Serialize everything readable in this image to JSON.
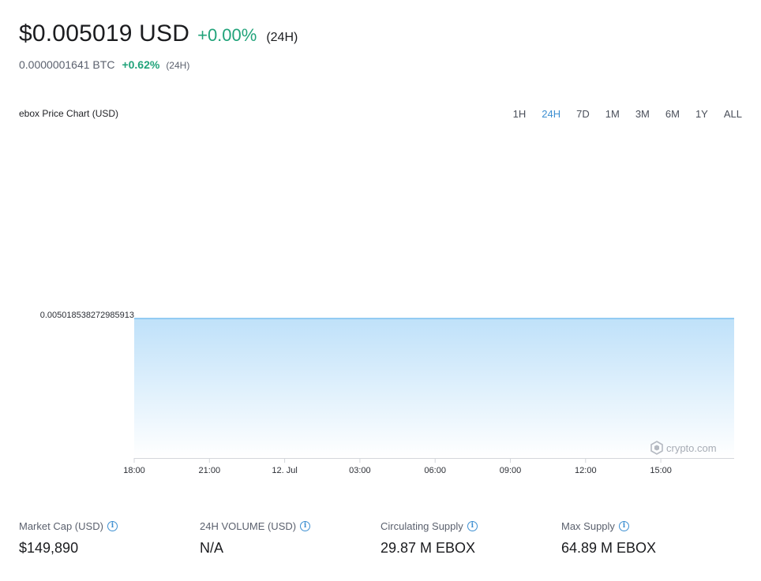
{
  "header": {
    "price_usd": "$0.005019 USD",
    "change_usd": "+0.00%",
    "period": "(24H)",
    "price_btc": "0.0000001641 BTC",
    "change_btc": "+0.62%",
    "period_btc": "(24H)"
  },
  "chart_header": {
    "title": "ebox Price Chart (USD)",
    "ranges": [
      "1H",
      "24H",
      "7D",
      "1M",
      "3M",
      "6M",
      "1Y",
      "ALL"
    ],
    "active_range": "24H"
  },
  "watermark": {
    "text": "crypto.com",
    "icon": "crypto-com-logo-icon"
  },
  "chart_data": {
    "type": "area",
    "title": "ebox Price Chart (USD)",
    "xlabel": "",
    "ylabel": "",
    "x_ticks": [
      "18:00",
      "21:00",
      "12. Jul",
      "03:00",
      "06:00",
      "09:00",
      "12:00",
      "15:00"
    ],
    "y_ticks": [
      "0.005018538272985913"
    ],
    "series": [
      {
        "values": [
          0.005018538272985913,
          0.005018538272985913,
          0.005018538272985913,
          0.005018538272985913,
          0.005018538272985913,
          0.005018538272985913,
          0.005018538272985913,
          0.005018538272985913,
          0.005018538272985913
        ]
      }
    ],
    "grid": false,
    "colors": {
      "line": "#7cc0ef",
      "fill_top": "#bfe1f9",
      "fill_bottom": "#ffffff"
    }
  },
  "stats": [
    {
      "label": "Market Cap (USD)",
      "value": "$149,890"
    },
    {
      "label": "24H VOLUME (USD)",
      "value": "N/A"
    },
    {
      "label": "Circulating Supply",
      "value": "29.87 M EBOX"
    },
    {
      "label": "Max Supply",
      "value": "64.89 M EBOX"
    }
  ]
}
